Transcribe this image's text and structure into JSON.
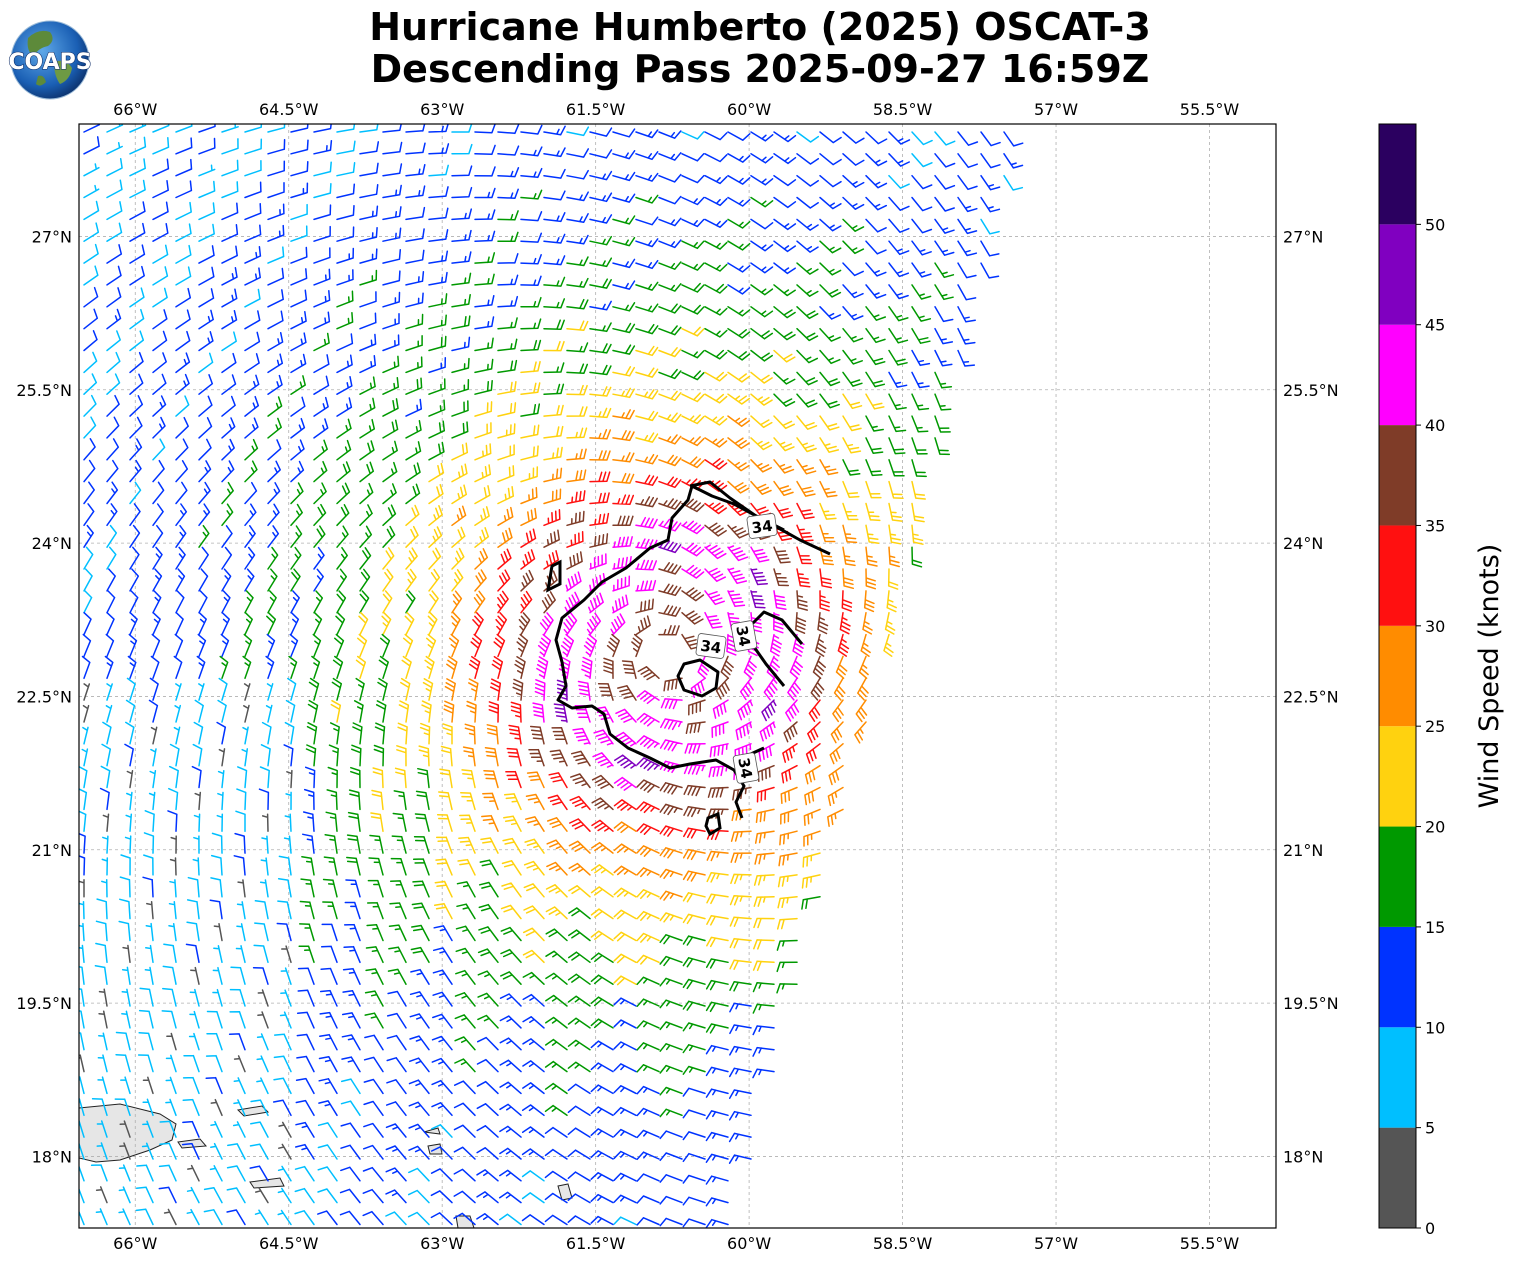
{
  "title": {
    "line1": "Hurricane Humberto (2025) OSCAT-3",
    "line2": "Descending Pass 2025-09-27 16:59Z"
  },
  "logo": {
    "text": "COAPS",
    "icon": "earth-globe-icon"
  },
  "map": {
    "lon_labels": [
      "66°W",
      "64.5°W",
      "63°W",
      "61.5°W",
      "60°W",
      "58.5°W",
      "57°W",
      "55.5°W"
    ],
    "lon_values": [
      -66,
      -64.5,
      -63,
      -61.5,
      -60,
      -58.5,
      -57,
      -55.5
    ],
    "lat_labels": [
      "27°N",
      "25.5°N",
      "24°N",
      "22.5°N",
      "21°N",
      "19.5°N",
      "18°N"
    ],
    "lat_values": [
      27,
      25.5,
      24,
      22.5,
      21,
      19.5,
      18
    ],
    "lon_range": [
      -66.55,
      -54.85
    ],
    "lat_range": [
      17.3,
      28.1
    ],
    "storm_center": {
      "lon": -60.8,
      "lat": 22.9
    },
    "contour_label": "34",
    "contour_color": "#000000",
    "land_color": "#e6e6e6",
    "gridlines": true
  },
  "colorbar": {
    "title": "Wind Speed (knots)",
    "tick_labels": [
      "0",
      "5",
      "10",
      "15",
      "20",
      "25",
      "30",
      "35",
      "40",
      "45",
      "50"
    ],
    "bins": [
      {
        "min": 0,
        "max": 5,
        "color": "#555555"
      },
      {
        "min": 5,
        "max": 10,
        "color": "#00bfff"
      },
      {
        "min": 10,
        "max": 15,
        "color": "#0033ff"
      },
      {
        "min": 15,
        "max": 20,
        "color": "#009900"
      },
      {
        "min": 20,
        "max": 25,
        "color": "#ffd20f"
      },
      {
        "min": 25,
        "max": 30,
        "color": "#ff8c00"
      },
      {
        "min": 30,
        "max": 35,
        "color": "#ff1010"
      },
      {
        "min": 35,
        "max": 40,
        "color": "#7f3c28"
      },
      {
        "min": 40,
        "max": 45,
        "color": "#ff00ff"
      },
      {
        "min": 45,
        "max": 50,
        "color": "#8000c0"
      },
      {
        "min": 50,
        "max": 55,
        "color": "#2b0060"
      }
    ]
  }
}
